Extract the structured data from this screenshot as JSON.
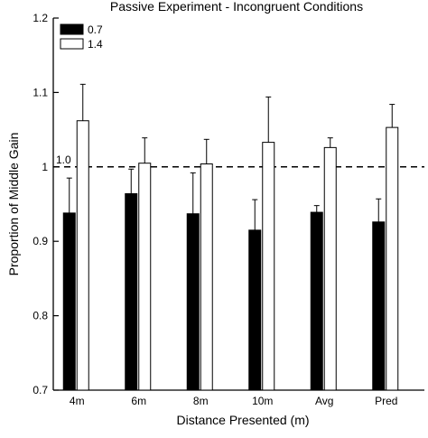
{
  "chart_data": {
    "type": "bar",
    "title": "Passive Experiment - Incongruent Conditions",
    "xlabel": "Distance Presented (m)",
    "ylabel": "Proportion of Middle Gain",
    "categories": [
      "4m",
      "6m",
      "8m",
      "10m",
      "Avg",
      "Pred"
    ],
    "ylim": [
      0.7,
      1.2
    ],
    "yticks": [
      0.7,
      0.8,
      0.9,
      1,
      1.1,
      1.2
    ],
    "ytick_labels": [
      "0.7",
      "0.8",
      "0.9",
      "1",
      "1.1",
      "1.2"
    ],
    "reference_line": {
      "value": 1.0,
      "label": "1.0"
    },
    "legend_position": "top-left",
    "series": [
      {
        "name": "0.7",
        "color": "#000000",
        "values": [
          0.938,
          0.964,
          0.937,
          0.915,
          0.939,
          0.926
        ],
        "errors": [
          0.047,
          0.033,
          0.055,
          0.041,
          0.009,
          0.031
        ]
      },
      {
        "name": "1.4",
        "color": "#ffffff",
        "values": [
          1.062,
          1.005,
          1.004,
          1.033,
          1.026,
          1.053
        ],
        "errors": [
          0.049,
          0.034,
          0.033,
          0.061,
          0.013,
          0.031
        ]
      }
    ]
  }
}
